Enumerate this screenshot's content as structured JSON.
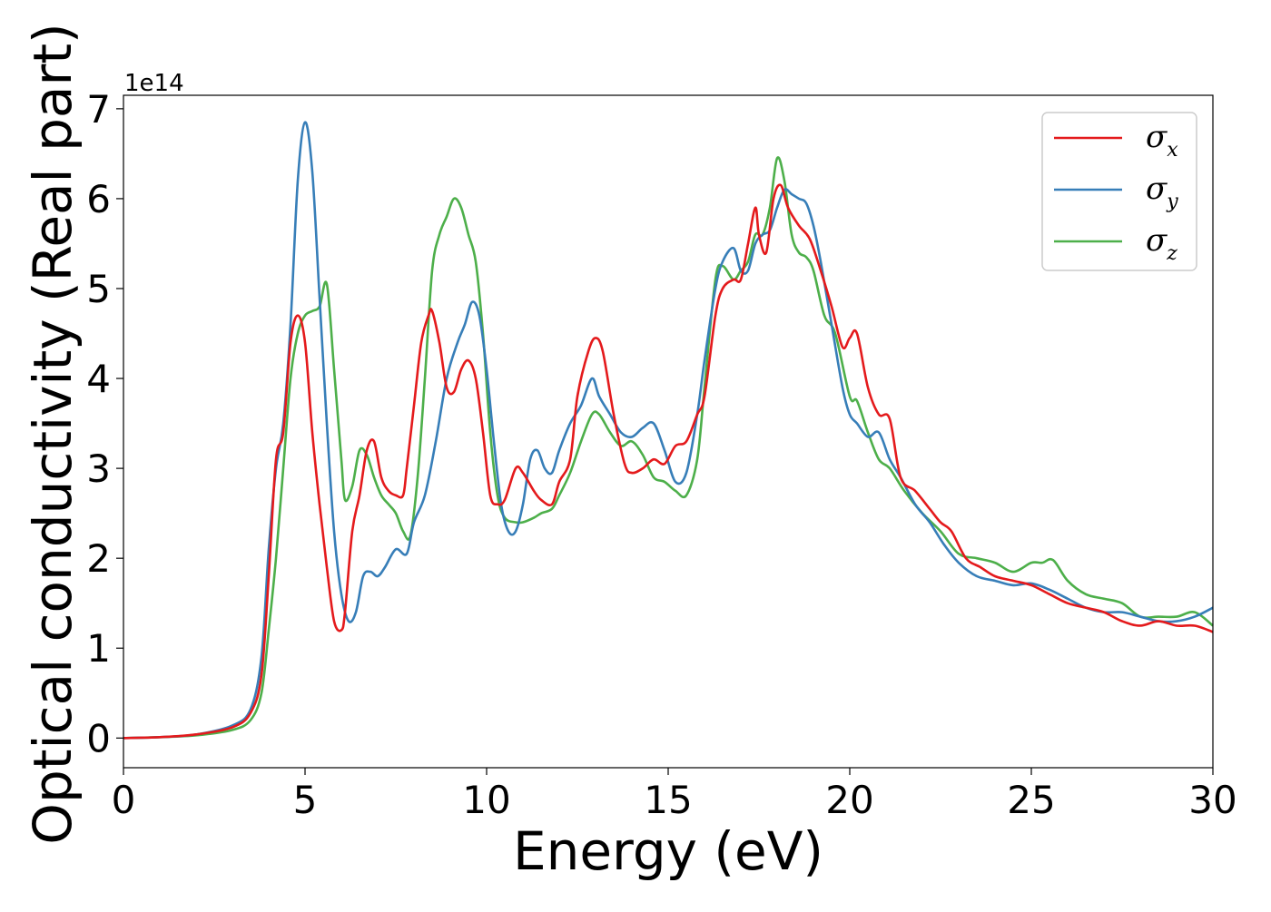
{
  "chart_data": {
    "type": "line",
    "title": "",
    "xlabel": "Energy (eV)",
    "ylabel": "Optical conductivity (Real part)",
    "y_multiplier": "1e14",
    "xlim": [
      0,
      30
    ],
    "ylim": [
      -0.33,
      7.15
    ],
    "xticks": [
      0,
      5,
      10,
      15,
      20,
      25,
      30
    ],
    "yticks": [
      0,
      1,
      2,
      3,
      4,
      5,
      6,
      7
    ],
    "grid": false,
    "legend_position": "top-right",
    "series": [
      {
        "name": "σ",
        "subscript": "x",
        "color": "#e41a1c",
        "x": [
          0,
          1,
          2,
          3,
          3.5,
          3.8,
          4.0,
          4.2,
          4.4,
          4.6,
          4.8,
          5.0,
          5.2,
          5.4,
          5.6,
          5.8,
          6.0,
          6.1,
          6.3,
          6.5,
          6.7,
          6.9,
          7.1,
          7.3,
          7.5,
          7.7,
          7.8,
          8.0,
          8.2,
          8.4,
          8.5,
          8.7,
          8.9,
          9.1,
          9.3,
          9.5,
          9.7,
          9.9,
          10.1,
          10.3,
          10.5,
          10.8,
          11.0,
          11.3,
          11.5,
          11.8,
          12.0,
          12.3,
          12.5,
          12.8,
          13.0,
          13.2,
          13.5,
          13.8,
          14.0,
          14.3,
          14.6,
          14.9,
          15.2,
          15.5,
          15.8,
          16.0,
          16.3,
          16.5,
          16.8,
          17.0,
          17.2,
          17.4,
          17.5,
          17.7,
          17.9,
          18.1,
          18.3,
          18.6,
          18.9,
          19.2,
          19.5,
          19.8,
          20.0,
          20.2,
          20.5,
          20.8,
          21.1,
          21.4,
          21.8,
          22.2,
          22.5,
          22.8,
          23.2,
          23.6,
          24.0,
          24.5,
          25.0,
          25.5,
          26.0,
          26.5,
          27.0,
          27.5,
          28.0,
          28.5,
          29.0,
          29.5,
          30.0
        ],
        "values": [
          0,
          0.01,
          0.04,
          0.12,
          0.28,
          0.7,
          1.8,
          3.1,
          3.4,
          4.4,
          4.7,
          4.4,
          3.4,
          2.6,
          1.9,
          1.3,
          1.2,
          1.4,
          2.3,
          2.7,
          3.2,
          3.3,
          2.9,
          2.75,
          2.7,
          2.7,
          3.0,
          3.7,
          4.4,
          4.7,
          4.75,
          4.4,
          3.9,
          3.85,
          4.1,
          4.2,
          4.0,
          3.4,
          2.7,
          2.6,
          2.65,
          3.0,
          2.95,
          2.75,
          2.65,
          2.6,
          2.85,
          3.1,
          3.8,
          4.3,
          4.45,
          4.3,
          3.6,
          3.05,
          2.95,
          3.0,
          3.1,
          3.05,
          3.25,
          3.3,
          3.6,
          3.8,
          4.7,
          5.0,
          5.1,
          5.1,
          5.5,
          5.9,
          5.6,
          5.4,
          6.0,
          6.15,
          5.9,
          5.7,
          5.55,
          5.2,
          4.8,
          4.35,
          4.45,
          4.5,
          3.9,
          3.6,
          3.55,
          2.9,
          2.75,
          2.55,
          2.4,
          2.3,
          2.0,
          1.9,
          1.8,
          1.75,
          1.7,
          1.6,
          1.5,
          1.45,
          1.4,
          1.3,
          1.25,
          1.3,
          1.25,
          1.25,
          1.18
        ]
      },
      {
        "name": "σ",
        "subscript": "y",
        "color": "#377eb8",
        "x": [
          0,
          1,
          2,
          3,
          3.5,
          3.8,
          4.0,
          4.2,
          4.4,
          4.6,
          4.8,
          5.0,
          5.2,
          5.4,
          5.6,
          5.8,
          6.0,
          6.2,
          6.4,
          6.6,
          6.8,
          7.0,
          7.2,
          7.5,
          7.8,
          8.0,
          8.3,
          8.6,
          8.9,
          9.2,
          9.4,
          9.6,
          9.8,
          10.0,
          10.2,
          10.4,
          10.6,
          10.8,
          11.0,
          11.2,
          11.4,
          11.6,
          11.8,
          12.0,
          12.3,
          12.6,
          12.9,
          13.1,
          13.4,
          13.7,
          14.0,
          14.3,
          14.6,
          14.9,
          15.2,
          15.5,
          15.8,
          16.0,
          16.3,
          16.5,
          16.8,
          17.0,
          17.2,
          17.4,
          17.6,
          17.8,
          18.0,
          18.2,
          18.4,
          18.6,
          18.8,
          19.0,
          19.2,
          19.5,
          19.8,
          20.0,
          20.2,
          20.5,
          20.8,
          21.1,
          21.4,
          21.8,
          22.2,
          22.6,
          23.0,
          23.5,
          24.0,
          24.5,
          25.0,
          25.5,
          26.0,
          26.5,
          27.0,
          27.5,
          28.0,
          28.5,
          29.0,
          29.5,
          30.0
        ],
        "values": [
          0,
          0.01,
          0.04,
          0.14,
          0.32,
          0.9,
          2.1,
          3.0,
          3.5,
          4.6,
          6.2,
          6.85,
          6.3,
          4.9,
          3.5,
          2.3,
          1.6,
          1.3,
          1.4,
          1.8,
          1.85,
          1.8,
          1.9,
          2.1,
          2.05,
          2.4,
          2.7,
          3.3,
          4.0,
          4.4,
          4.6,
          4.85,
          4.7,
          4.1,
          3.3,
          2.6,
          2.3,
          2.3,
          2.6,
          3.1,
          3.2,
          3.0,
          2.95,
          3.2,
          3.5,
          3.7,
          4.0,
          3.8,
          3.6,
          3.4,
          3.35,
          3.45,
          3.5,
          3.2,
          2.85,
          2.95,
          3.6,
          4.2,
          5.0,
          5.3,
          5.45,
          5.2,
          5.2,
          5.5,
          5.6,
          5.65,
          5.9,
          6.1,
          6.05,
          6.0,
          5.95,
          5.7,
          5.3,
          4.6,
          3.9,
          3.6,
          3.5,
          3.35,
          3.4,
          3.1,
          2.9,
          2.6,
          2.4,
          2.15,
          1.95,
          1.8,
          1.75,
          1.7,
          1.72,
          1.65,
          1.55,
          1.45,
          1.4,
          1.4,
          1.35,
          1.3,
          1.3,
          1.35,
          1.45
        ]
      },
      {
        "name": "σ",
        "subscript": "z",
        "color": "#4daf4a",
        "x": [
          0,
          1,
          2,
          3,
          3.5,
          3.8,
          4.0,
          4.2,
          4.4,
          4.6,
          4.8,
          5.0,
          5.2,
          5.4,
          5.6,
          5.8,
          6.0,
          6.1,
          6.3,
          6.5,
          6.7,
          6.9,
          7.1,
          7.3,
          7.5,
          7.7,
          7.9,
          8.1,
          8.3,
          8.5,
          8.7,
          8.9,
          9.1,
          9.3,
          9.5,
          9.7,
          9.9,
          10.1,
          10.3,
          10.5,
          10.8,
          11.0,
          11.3,
          11.5,
          11.8,
          12.0,
          12.3,
          12.6,
          12.9,
          13.1,
          13.4,
          13.7,
          14.0,
          14.3,
          14.6,
          14.9,
          15.2,
          15.5,
          15.8,
          16.0,
          16.3,
          16.5,
          16.8,
          17.0,
          17.2,
          17.4,
          17.6,
          17.8,
          18.0,
          18.2,
          18.4,
          18.6,
          18.8,
          19.0,
          19.3,
          19.6,
          20.0,
          20.2,
          20.5,
          20.8,
          21.1,
          21.5,
          22.0,
          22.5,
          23.0,
          23.5,
          24.0,
          24.5,
          25.0,
          25.3,
          25.6,
          26.0,
          26.5,
          27.0,
          27.5,
          28.0,
          28.5,
          29.0,
          29.5,
          30.0
        ],
        "values": [
          0,
          0.01,
          0.03,
          0.09,
          0.2,
          0.5,
          1.2,
          2.0,
          3.0,
          4.0,
          4.5,
          4.7,
          4.75,
          4.8,
          5.05,
          4.1,
          3.1,
          2.65,
          2.8,
          3.2,
          3.15,
          2.9,
          2.7,
          2.6,
          2.5,
          2.3,
          2.25,
          2.9,
          4.0,
          5.2,
          5.6,
          5.8,
          6.0,
          5.9,
          5.6,
          5.3,
          4.5,
          3.4,
          2.7,
          2.45,
          2.4,
          2.4,
          2.45,
          2.5,
          2.55,
          2.7,
          2.95,
          3.3,
          3.6,
          3.6,
          3.4,
          3.25,
          3.3,
          3.15,
          2.9,
          2.85,
          2.75,
          2.7,
          3.1,
          3.9,
          5.1,
          5.25,
          5.1,
          5.2,
          5.3,
          5.6,
          5.6,
          5.9,
          6.45,
          6.2,
          5.6,
          5.4,
          5.35,
          5.2,
          4.7,
          4.5,
          3.8,
          3.75,
          3.4,
          3.1,
          3.0,
          2.75,
          2.5,
          2.3,
          2.05,
          2.0,
          1.95,
          1.85,
          1.95,
          1.95,
          1.98,
          1.75,
          1.6,
          1.55,
          1.5,
          1.35,
          1.35,
          1.35,
          1.4,
          1.25
        ]
      }
    ]
  }
}
